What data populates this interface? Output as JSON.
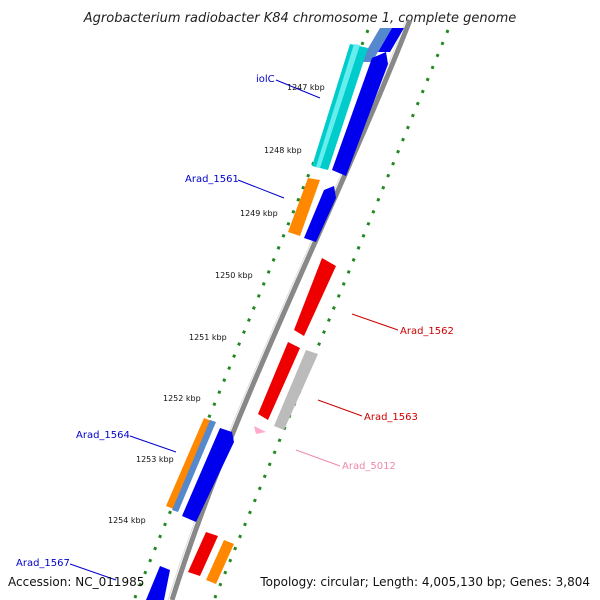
{
  "title": "Agrobacterium radiobacter K84 chromosome 1, complete genome",
  "accession": "Accession: NC_011985",
  "summary": "Topology: circular; Length: 4,005,130 bp; Genes: 3,804",
  "ticks": [
    "1247 kbp",
    "1248 kbp",
    "1249 kbp",
    "1250 kbp",
    "1251 kbp",
    "1252 kbp",
    "1253 kbp",
    "1254 kbp"
  ],
  "gene_labels": [
    {
      "text": "iolC",
      "color": "#0000cc"
    },
    {
      "text": "Arad_1561",
      "color": "#0000cc"
    },
    {
      "text": "Arad_1562",
      "color": "#cc0000"
    },
    {
      "text": "Arad_1563",
      "color": "#cc0000"
    },
    {
      "text": "Arad_1564",
      "color": "#0000cc"
    },
    {
      "text": "Arad_5012",
      "color": "#ee88aa"
    },
    {
      "text": "Arad_1567",
      "color": "#0000cc"
    }
  ],
  "colors": {
    "backbone": "#888888",
    "tick_dots": "#228822",
    "cds_forward": "#0000ee",
    "cds_reverse": "#ee0000",
    "rna": "#ff8800",
    "misc": "#00cccc",
    "pseudo": "#bbbbbb",
    "pink_feature": "#ffaacc"
  }
}
